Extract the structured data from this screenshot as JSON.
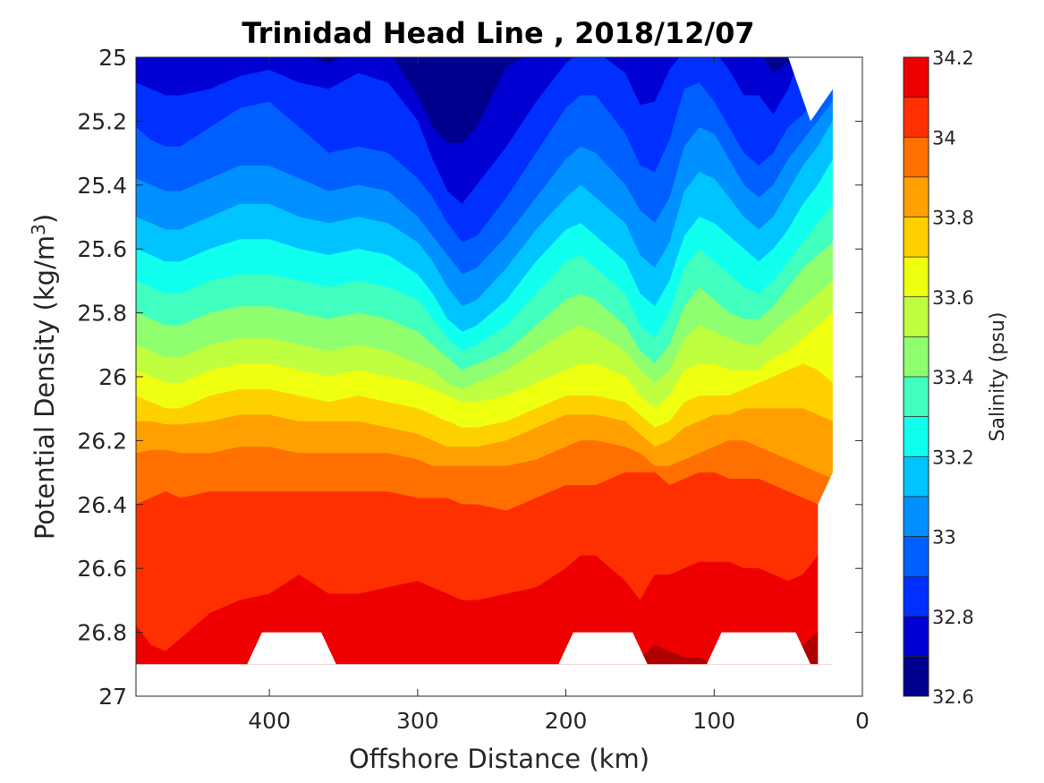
{
  "chart_data": {
    "type": "contour",
    "title": "Trinidad Head Line , 2018/12/07",
    "xlabel": "Offshore Distance (km)",
    "ylabel": "Potential Density (kg/m",
    "ylabel_sup": "3",
    "ylabel_close": ")",
    "xlim": [
      490,
      0
    ],
    "x_reversed": true,
    "ylim": [
      25,
      27
    ],
    "y_reversed": true,
    "xticks": [
      400,
      300,
      200,
      100,
      0
    ],
    "xtick_labels": [
      "400",
      "300",
      "200",
      "100",
      "0"
    ],
    "yticks": [
      25,
      25.2,
      25.4,
      25.6,
      25.8,
      26,
      26.2,
      26.4,
      26.6,
      26.8,
      27
    ],
    "ytick_labels": [
      "25",
      "25.2",
      "25.4",
      "25.6",
      "25.8",
      "26",
      "26.2",
      "26.4",
      "26.6",
      "26.8",
      "27"
    ],
    "colorbar": {
      "label": "Salinity (psu)",
      "levels": [
        32.6,
        32.7,
        32.8,
        32.9,
        33.0,
        33.1,
        33.2,
        33.3,
        33.4,
        33.5,
        33.6,
        33.7,
        33.8,
        33.9,
        34.0,
        34.1,
        34.2
      ],
      "ticks": [
        32.6,
        32.8,
        33.0,
        33.2,
        33.4,
        33.6,
        33.8,
        34.0,
        34.2
      ],
      "tick_labels": [
        "32.6",
        "32.8",
        "33",
        "33.2",
        "33.4",
        "33.6",
        "33.8",
        "34",
        "34.2"
      ],
      "colors": [
        "#00008f",
        "#0000d2",
        "#0030ff",
        "#0060ff",
        "#0090ff",
        "#00c4ff",
        "#10ffef",
        "#40ffbf",
        "#8fff70",
        "#bfff40",
        "#efff10",
        "#ffd000",
        "#ffa000",
        "#ff7000",
        "#ff3000",
        "#ef0000",
        "#af0000"
      ]
    },
    "x": [
      490,
      480,
      470,
      460,
      440,
      420,
      400,
      380,
      360,
      340,
      320,
      300,
      290,
      280,
      270,
      260,
      240,
      220,
      200,
      190,
      180,
      160,
      150,
      140,
      130,
      120,
      110,
      100,
      90,
      80,
      70,
      60,
      50,
      40,
      30,
      20
    ],
    "isohalines": [
      {
        "salinity": 32.7,
        "density": [
          24.98,
          24.98,
          24.98,
          24.98,
          24.98,
          24.98,
          24.98,
          24.99,
          25.02,
          24.98,
          24.98,
          25.12,
          25.22,
          25.27,
          25.27,
          25.22,
          25.03,
          24.98,
          24.98,
          24.98,
          24.98,
          24.98,
          24.98,
          24.98,
          24.98,
          24.98,
          24.98,
          24.98,
          24.98,
          24.98,
          24.98,
          25.05,
          25.02,
          24.98,
          24.98,
          24.98
        ]
      },
      {
        "salinity": 32.8,
        "density": [
          25.08,
          25.1,
          25.12,
          25.12,
          25.1,
          25.06,
          25.04,
          25.08,
          25.1,
          25.05,
          25.08,
          25.2,
          25.32,
          25.42,
          25.46,
          25.4,
          25.28,
          25.14,
          25.02,
          24.98,
          24.98,
          25.05,
          25.15,
          25.14,
          25.04,
          24.98,
          24.98,
          24.98,
          25.04,
          25.12,
          25.12,
          25.18,
          25.1,
          24.98,
          24.98,
          24.98
        ]
      },
      {
        "salinity": 32.9,
        "density": [
          25.22,
          25.26,
          25.28,
          25.28,
          25.22,
          25.16,
          25.14,
          25.22,
          25.3,
          25.28,
          25.3,
          25.38,
          25.44,
          25.52,
          25.58,
          25.56,
          25.44,
          25.3,
          25.16,
          25.12,
          25.12,
          25.24,
          25.34,
          25.36,
          25.26,
          25.1,
          25.08,
          25.14,
          25.22,
          25.3,
          25.34,
          25.3,
          25.22,
          25.18,
          25.12,
          25.1
        ]
      },
      {
        "salinity": 33.0,
        "density": [
          25.38,
          25.4,
          25.42,
          25.42,
          25.38,
          25.34,
          25.34,
          25.38,
          25.42,
          25.4,
          25.42,
          25.5,
          25.56,
          25.62,
          25.68,
          25.66,
          25.56,
          25.44,
          25.32,
          25.28,
          25.3,
          25.4,
          25.48,
          25.52,
          25.44,
          25.28,
          25.22,
          25.24,
          25.32,
          25.4,
          25.44,
          25.4,
          25.32,
          25.26,
          25.2,
          25.14
        ]
      },
      {
        "salinity": 33.1,
        "density": [
          25.5,
          25.52,
          25.54,
          25.54,
          25.5,
          25.46,
          25.46,
          25.5,
          25.52,
          25.5,
          25.52,
          25.58,
          25.64,
          25.72,
          25.78,
          25.76,
          25.66,
          25.54,
          25.44,
          25.4,
          25.44,
          25.52,
          25.62,
          25.66,
          25.58,
          25.42,
          25.36,
          25.38,
          25.44,
          25.5,
          25.54,
          25.5,
          25.42,
          25.34,
          25.28,
          25.2
        ]
      },
      {
        "salinity": 33.2,
        "density": [
          25.6,
          25.62,
          25.64,
          25.64,
          25.6,
          25.57,
          25.57,
          25.6,
          25.62,
          25.6,
          25.62,
          25.68,
          25.74,
          25.82,
          25.86,
          25.84,
          25.76,
          25.64,
          25.54,
          25.52,
          25.56,
          25.64,
          25.74,
          25.78,
          25.7,
          25.56,
          25.5,
          25.52,
          25.56,
          25.6,
          25.64,
          25.6,
          25.54,
          25.46,
          25.4,
          25.32
        ]
      },
      {
        "salinity": 33.3,
        "density": [
          25.7,
          25.72,
          25.74,
          25.74,
          25.7,
          25.68,
          25.68,
          25.7,
          25.72,
          25.7,
          25.72,
          25.76,
          25.82,
          25.88,
          25.92,
          25.9,
          25.84,
          25.74,
          25.64,
          25.62,
          25.66,
          25.74,
          25.84,
          25.88,
          25.8,
          25.66,
          25.6,
          25.64,
          25.68,
          25.72,
          25.74,
          25.7,
          25.64,
          25.58,
          25.52,
          25.46
        ]
      },
      {
        "salinity": 33.4,
        "density": [
          25.8,
          25.82,
          25.84,
          25.84,
          25.8,
          25.78,
          25.78,
          25.8,
          25.82,
          25.8,
          25.82,
          25.86,
          25.9,
          25.94,
          25.98,
          25.96,
          25.92,
          25.84,
          25.76,
          25.74,
          25.76,
          25.84,
          25.92,
          25.96,
          25.9,
          25.78,
          25.72,
          25.76,
          25.8,
          25.82,
          25.82,
          25.78,
          25.72,
          25.66,
          25.62,
          25.58
        ]
      },
      {
        "salinity": 33.5,
        "density": [
          25.9,
          25.92,
          25.94,
          25.94,
          25.9,
          25.88,
          25.88,
          25.9,
          25.92,
          25.9,
          25.92,
          25.96,
          25.98,
          26.02,
          26.04,
          26.02,
          25.98,
          25.92,
          25.86,
          25.84,
          25.86,
          25.92,
          25.98,
          26.02,
          25.98,
          25.88,
          25.84,
          25.86,
          25.88,
          25.9,
          25.9,
          25.86,
          25.82,
          25.78,
          25.74,
          25.7
        ]
      },
      {
        "salinity": 33.6,
        "density": [
          25.98,
          26.0,
          26.02,
          26.02,
          25.98,
          25.96,
          25.96,
          25.98,
          26.0,
          25.98,
          26.0,
          26.02,
          26.04,
          26.06,
          26.08,
          26.08,
          26.06,
          26.02,
          25.98,
          25.96,
          25.96,
          26.0,
          26.06,
          26.1,
          26.06,
          25.98,
          25.96,
          25.96,
          25.98,
          25.98,
          25.98,
          25.94,
          25.92,
          25.88,
          25.84,
          25.8
        ]
      },
      {
        "salinity": 33.7,
        "density": [
          26.06,
          26.08,
          26.1,
          26.1,
          26.06,
          26.04,
          26.04,
          26.06,
          26.08,
          26.06,
          26.08,
          26.1,
          26.12,
          26.14,
          26.16,
          26.16,
          26.14,
          26.1,
          26.06,
          26.06,
          26.06,
          26.08,
          26.12,
          26.16,
          26.14,
          26.08,
          26.06,
          26.06,
          26.06,
          26.04,
          26.02,
          26.0,
          25.98,
          25.96,
          25.98,
          26.02
        ]
      },
      {
        "salinity": 33.8,
        "density": [
          26.14,
          26.14,
          26.15,
          26.15,
          26.14,
          26.12,
          26.12,
          26.14,
          26.14,
          26.14,
          26.16,
          26.18,
          26.2,
          26.22,
          26.22,
          26.22,
          26.2,
          26.16,
          26.12,
          26.12,
          26.12,
          26.14,
          26.18,
          26.22,
          26.2,
          26.16,
          26.14,
          26.12,
          26.12,
          26.1,
          26.1,
          26.1,
          26.1,
          26.1,
          26.12,
          26.14
        ]
      },
      {
        "salinity": 33.9,
        "density": [
          26.24,
          26.23,
          26.23,
          26.24,
          26.24,
          26.22,
          26.22,
          26.24,
          26.24,
          26.24,
          26.24,
          26.26,
          26.28,
          26.28,
          26.28,
          26.28,
          26.28,
          26.26,
          26.22,
          26.2,
          26.2,
          26.22,
          26.24,
          26.28,
          26.28,
          26.26,
          26.24,
          26.22,
          26.2,
          26.2,
          26.22,
          26.24,
          26.26,
          26.28,
          26.3,
          26.32
        ]
      },
      {
        "salinity": 34.0,
        "density": [
          26.4,
          26.38,
          26.36,
          26.38,
          26.36,
          26.36,
          26.36,
          26.36,
          26.36,
          26.36,
          26.36,
          26.38,
          26.38,
          26.38,
          26.4,
          26.4,
          26.42,
          26.38,
          26.34,
          26.34,
          26.34,
          26.3,
          26.3,
          26.3,
          26.34,
          26.32,
          26.3,
          26.3,
          26.32,
          26.32,
          26.32,
          26.34,
          26.36,
          26.38,
          26.4,
          26.42
        ]
      },
      {
        "salinity": 34.1,
        "density": [
          26.78,
          26.84,
          26.86,
          26.82,
          26.74,
          26.7,
          26.68,
          26.62,
          26.68,
          26.68,
          26.66,
          26.64,
          26.66,
          26.68,
          26.7,
          26.7,
          26.68,
          26.66,
          26.6,
          26.56,
          26.56,
          26.64,
          26.7,
          26.62,
          26.62,
          26.6,
          26.58,
          26.58,
          26.58,
          26.6,
          26.6,
          26.62,
          26.64,
          26.62,
          26.56,
          26.5
        ]
      },
      {
        "salinity": 34.2,
        "density": [
          26.9,
          26.9,
          26.9,
          26.9,
          26.9,
          26.9,
          26.9,
          26.9,
          26.9,
          26.9,
          26.9,
          26.9,
          26.9,
          26.9,
          26.9,
          26.9,
          26.9,
          26.9,
          26.9,
          26.9,
          26.9,
          26.9,
          26.88,
          26.84,
          26.86,
          26.88,
          26.88,
          26.9,
          26.9,
          26.9,
          26.9,
          26.9,
          26.9,
          26.84,
          26.8,
          26.8
        ]
      }
    ],
    "data_mask": {
      "bottom_gaps": [
        {
          "x_from": 410,
          "x_to": 360,
          "shallowest_density": 26.8
        },
        {
          "x_from": 200,
          "x_to": 150,
          "shallowest_density": 26.8
        },
        {
          "x_from": 100,
          "x_to": 40,
          "shallowest_density": 26.8
        }
      ],
      "bottom_density": 26.9,
      "nearshore_edge_top": [
        [
          50,
          25.0
        ],
        [
          35,
          25.2
        ],
        [
          20,
          25.1
        ]
      ],
      "nearshore_edge_bottom": [
        [
          20,
          26.3
        ],
        [
          30,
          26.4
        ],
        [
          30,
          26.8
        ]
      ]
    }
  }
}
